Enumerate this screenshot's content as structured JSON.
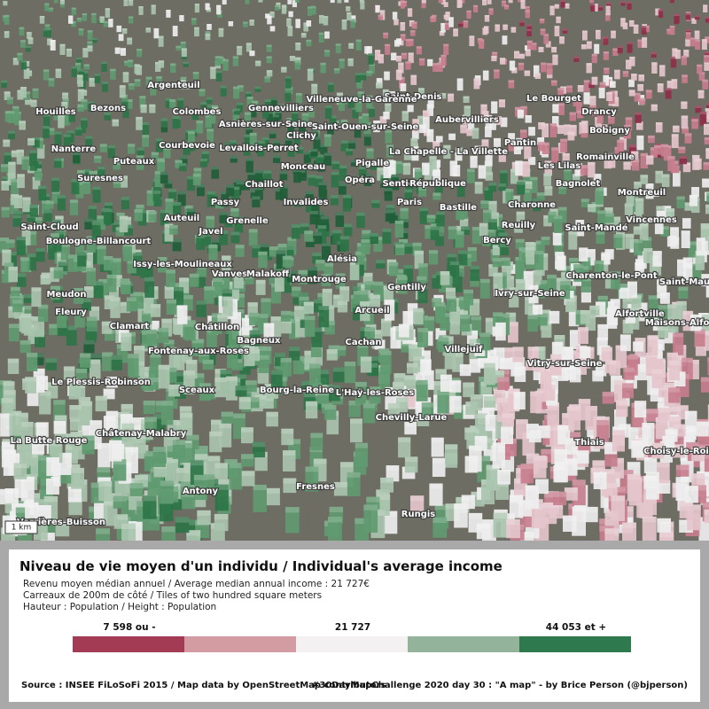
{
  "map": {
    "scale": "1 km",
    "labels": [
      "Argenteuil",
      "Saint-Denis",
      "Gennevilliers",
      "Colombes",
      "Houilles",
      "Bezons",
      "Villeneuve-la-Garenne",
      "Aubervilliers",
      "Le Bourget",
      "Drancy",
      "Bobigny",
      "Pantin",
      "Nanterre",
      "Courbevoie",
      "Levallois-Perret",
      "Clichy",
      "Asnières-sur-Seine",
      "Saint-Ouen-sur-Seine",
      "La Chapelle - La Villette",
      "Romainville",
      "Les Lilas",
      "Puteaux",
      "Monceau",
      "Pigalle",
      "Suresnes",
      "Chaillot",
      "Opéra",
      "Sentier",
      "République",
      "Bagnolet",
      "Montreuil",
      "Passy",
      "Invalides",
      "Paris",
      "Bastille",
      "Charonne",
      "Auteuil",
      "Grenelle",
      "Vincennes",
      "Saint-Cloud",
      "Javel",
      "Reuilly",
      "Saint-Mandé",
      "Bercy",
      "Boulogne-Billancourt",
      "Alésia",
      "Issy-les-Moulineaux",
      "Charenton-le-Pont",
      "Vanves",
      "Malakoff",
      "Montrouge",
      "Saint-Maur",
      "Gentilly",
      "Ivry-sur-Seine",
      "Meudon",
      "Fleury",
      "Arcueil",
      "Alfortville",
      "Maisons-Alfort",
      "Clamart",
      "Châtillon",
      "Fontenay-aux-Roses",
      "Bagneux",
      "Cachan",
      "Villejuif",
      "Vitry-sur-Seine",
      "Le Plessis-Robinson",
      "Sceaux",
      "Bourg-la-Reine",
      "L'Haÿ-les-Roses",
      "Chevilly-Larue",
      "La Butte Rouge",
      "Châtenay-Malabry",
      "Thiais",
      "Choisy-le-Roi",
      "Antony",
      "Fresnes",
      "Rungis",
      "Verrières-Buisson"
    ]
  },
  "legend": {
    "title": "Niveau de vie moyen d'un individu / Individual's average income",
    "lines": [
      "Revenu moyen médian annuel / Average median annual income : 21 727€",
      "Carreaux de 200m de côté / Tiles of two hundred square meters",
      "Hauteur : Population / Height : Population"
    ],
    "colors": [
      "#a33b55",
      "#d39ca3",
      "#f3f1f1",
      "#93b39a",
      "#2e7a4e"
    ],
    "labels": [
      "7 598 ou -",
      "21 727",
      "44 053 et +"
    ]
  },
  "footer": {
    "source": "Source : INSEE FiLoSoFi 2015 / Map data by OpenStreetMap contributors",
    "credit": "#30DayMapChallenge 2020 day 30 : \"A map\" - by Brice Person (@bjperson)"
  }
}
